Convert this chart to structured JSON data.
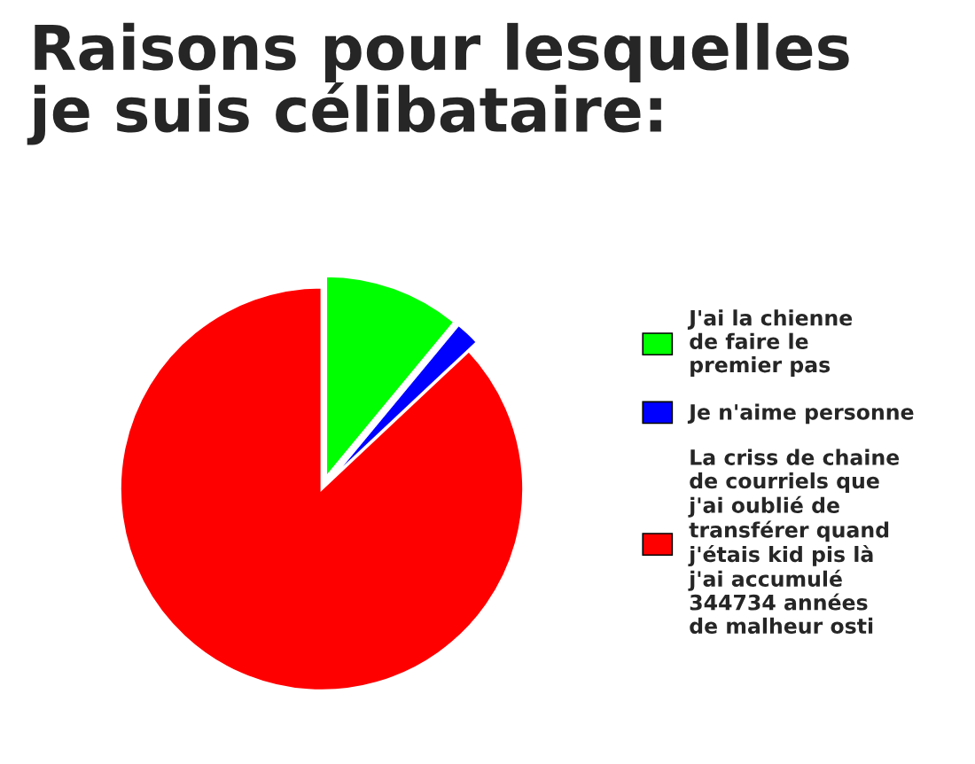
{
  "chart_data": {
    "type": "pie",
    "title": "Raisons pour lesquelles\nje suis célibataire:",
    "categories": [
      "J'ai la chienne\nde faire le\npremier pas",
      "Je n'aime personne",
      "La criss de chaine\nde courriels que\nj'ai oublié de\ntransférer quand\nj'étais kid pis là\nj'ai accumulé\n344734 années\nde malheur osti"
    ],
    "values": [
      11,
      2,
      87
    ],
    "colors": [
      "#00ff00",
      "#0000ff",
      "#ff0000"
    ],
    "legend": "right"
  }
}
